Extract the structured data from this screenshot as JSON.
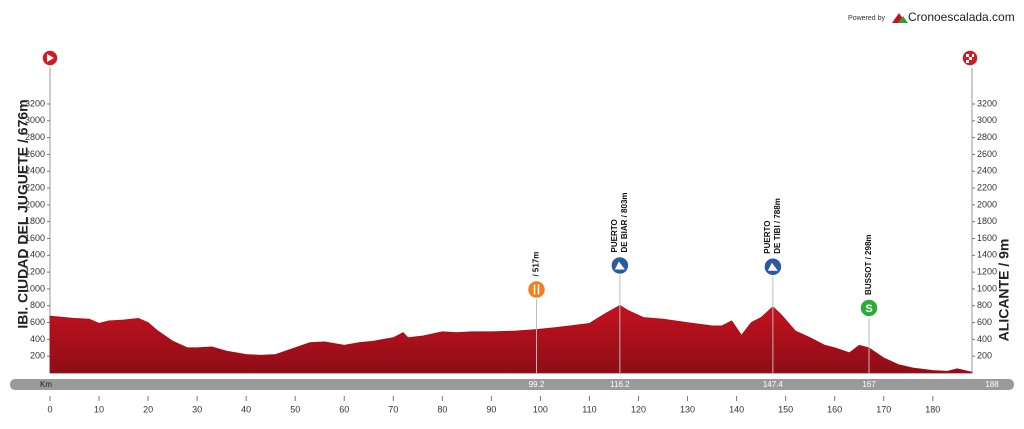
{
  "header": {
    "powered_by": "Powered by",
    "brand": "Cronoescalada.com"
  },
  "chart_data": {
    "type": "area",
    "start_label": "IBI. CIUDAD DEL JUGUETE / 676m",
    "finish_label": "ALICANTE / 9m",
    "x_axis_label": "Km",
    "color": "#c4121f",
    "x": [
      0,
      5,
      8,
      10,
      12,
      15,
      18,
      20,
      22,
      25,
      28,
      30,
      33,
      36,
      40,
      43,
      46,
      50,
      53,
      56,
      60,
      63,
      66,
      70,
      72,
      73,
      76,
      80,
      83,
      86,
      90,
      95,
      99.2,
      103,
      106,
      110,
      113,
      116.2,
      118,
      121,
      125,
      130,
      135,
      137,
      139,
      141,
      143,
      145,
      147.4,
      149,
      152,
      155,
      158,
      160,
      163,
      165,
      167,
      170,
      173,
      176,
      180,
      183,
      185,
      188
    ],
    "values": [
      676,
      650,
      640,
      590,
      620,
      630,
      650,
      600,
      500,
      380,
      300,
      300,
      310,
      260,
      220,
      210,
      220,
      300,
      360,
      370,
      330,
      360,
      380,
      420,
      480,
      420,
      440,
      490,
      480,
      490,
      490,
      500,
      517,
      540,
      560,
      590,
      700,
      803,
      740,
      660,
      640,
      600,
      560,
      560,
      620,
      450,
      600,
      660,
      788,
      700,
      500,
      420,
      330,
      300,
      240,
      330,
      298,
      180,
      100,
      60,
      30,
      20,
      50,
      9
    ],
    "xlim": [
      0,
      188
    ],
    "xticks": [
      0,
      10,
      20,
      30,
      40,
      50,
      60,
      70,
      80,
      90,
      100,
      110,
      120,
      130,
      140,
      150,
      160,
      170,
      180
    ],
    "ylim": [
      0,
      3200
    ],
    "yticks": [
      200,
      400,
      600,
      800,
      1000,
      1200,
      1400,
      1600,
      1800,
      2000,
      2200,
      2400,
      2600,
      2800,
      3000,
      3200
    ],
    "markers": [
      {
        "km": 99.2,
        "label": [
          "/ 517m"
        ],
        "icon": "feed",
        "color": "#f07f1d"
      },
      {
        "km": 116.2,
        "label": [
          "PUERTO",
          "DE BIAR / 803m"
        ],
        "icon": "climb",
        "color": "#2c58a4"
      },
      {
        "km": 147.4,
        "label": [
          "PUERTO",
          "DE TIBI / 788m"
        ],
        "icon": "climb",
        "color": "#2c58a4"
      },
      {
        "km": 167,
        "label": [
          "BUSSOT / 298m"
        ],
        "icon": "sprint",
        "icon_text": "S",
        "color": "#2eaa3a"
      }
    ]
  }
}
